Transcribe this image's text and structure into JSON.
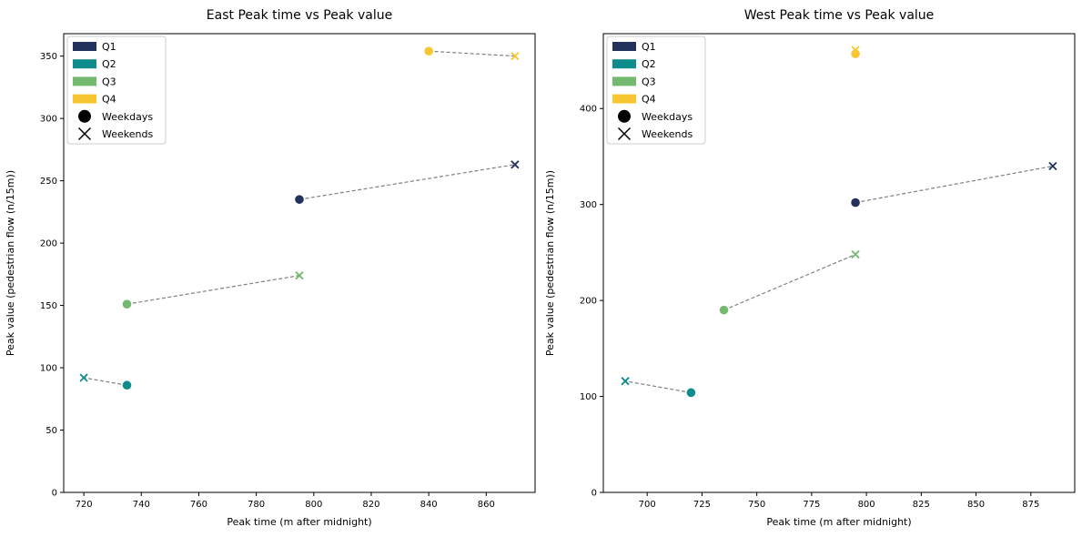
{
  "chart_data": [
    {
      "type": "scatter",
      "title": "East Peak time vs Peak value",
      "xlabel": "Peak time (m after midnight)",
      "ylabel": "Peak value (pedestrian flow (n/15m))",
      "xlim": [
        713,
        877
      ],
      "ylim": [
        0,
        368
      ],
      "xticks": [
        720,
        740,
        760,
        780,
        800,
        820,
        840,
        860
      ],
      "yticks": [
        0,
        50,
        100,
        150,
        200,
        250,
        300,
        350
      ],
      "grid": false,
      "legend_position": "top-left",
      "series": [
        {
          "name": "Q1",
          "color": "#22325c",
          "points": [
            {
              "x": 795,
              "y": 235,
              "kind": "Weekdays"
            },
            {
              "x": 870,
              "y": 263,
              "kind": "Weekends"
            }
          ]
        },
        {
          "name": "Q2",
          "color": "#0f8c8c",
          "points": [
            {
              "x": 735,
              "y": 86,
              "kind": "Weekdays"
            },
            {
              "x": 720,
              "y": 92,
              "kind": "Weekends"
            }
          ]
        },
        {
          "name": "Q3",
          "color": "#73b96f",
          "points": [
            {
              "x": 735,
              "y": 151,
              "kind": "Weekdays"
            },
            {
              "x": 795,
              "y": 174,
              "kind": "Weekends"
            }
          ]
        },
        {
          "name": "Q4",
          "color": "#f8c630",
          "points": [
            {
              "x": 840,
              "y": 354,
              "kind": "Weekdays"
            },
            {
              "x": 870,
              "y": 350,
              "kind": "Weekends"
            }
          ]
        }
      ]
    },
    {
      "type": "scatter",
      "title": "West Peak time vs Peak value",
      "xlabel": "Peak time (m after midnight)",
      "ylabel": "Peak value (pedestrian flow (n/15m))",
      "xlim": [
        680,
        895
      ],
      "ylim": [
        0,
        478
      ],
      "xticks": [
        700,
        725,
        750,
        775,
        800,
        825,
        850,
        875
      ],
      "yticks": [
        0,
        100,
        200,
        300,
        400
      ],
      "grid": false,
      "legend_position": "top-left",
      "series": [
        {
          "name": "Q1",
          "color": "#22325c",
          "points": [
            {
              "x": 795,
              "y": 302,
              "kind": "Weekdays"
            },
            {
              "x": 885,
              "y": 340,
              "kind": "Weekends"
            }
          ]
        },
        {
          "name": "Q2",
          "color": "#0f8c8c",
          "points": [
            {
              "x": 720,
              "y": 104,
              "kind": "Weekdays"
            },
            {
              "x": 690,
              "y": 116,
              "kind": "Weekends"
            }
          ]
        },
        {
          "name": "Q3",
          "color": "#73b96f",
          "points": [
            {
              "x": 735,
              "y": 190,
              "kind": "Weekdays"
            },
            {
              "x": 795,
              "y": 248,
              "kind": "Weekends"
            }
          ]
        },
        {
          "name": "Q4",
          "color": "#f8c630",
          "points": [
            {
              "x": 795,
              "y": 457,
              "kind": "Weekdays"
            },
            {
              "x": 795,
              "y": 461,
              "kind": "Weekends"
            }
          ]
        }
      ]
    }
  ],
  "legend": {
    "entries": [
      {
        "label": "Q1",
        "symbol": "patch",
        "color": "#22325c"
      },
      {
        "label": "Q2",
        "symbol": "patch",
        "color": "#0f8c8c"
      },
      {
        "label": "Q3",
        "symbol": "patch",
        "color": "#73b96f"
      },
      {
        "label": "Q4",
        "symbol": "patch",
        "color": "#f8c630"
      },
      {
        "label": "Weekdays",
        "symbol": "circle",
        "color": "#000000"
      },
      {
        "label": "Weekends",
        "symbol": "x",
        "color": "#000000"
      }
    ]
  },
  "connector_color": "#808080"
}
